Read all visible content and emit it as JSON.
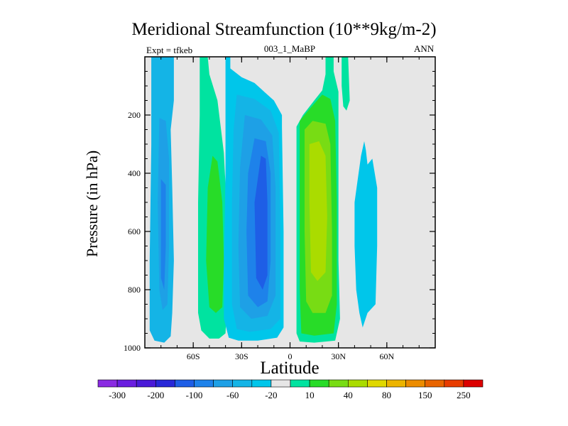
{
  "chart_data": {
    "type": "heatmap",
    "title": "Meridional Streamfunction (10**9kg/m-2)",
    "left_label": "Expt = tfkeb",
    "center_label": "003_1_MaBP",
    "right_label": "ANN",
    "xlabel": "Latitude",
    "ylabel": "Pressure (in hPa)",
    "xlim": [
      -90,
      90
    ],
    "ylim": [
      1000,
      0
    ],
    "x_ticks": [
      {
        "value": -60,
        "label": "60S"
      },
      {
        "value": -30,
        "label": "30S"
      },
      {
        "value": 0,
        "label": "0"
      },
      {
        "value": 30,
        "label": "30N"
      },
      {
        "value": 60,
        "label": "60N"
      }
    ],
    "y_ticks": [
      {
        "value": 200,
        "label": "200"
      },
      {
        "value": 400,
        "label": "400"
      },
      {
        "value": 600,
        "label": "600"
      },
      {
        "value": 800,
        "label": "800"
      },
      {
        "value": 1000,
        "label": "1000"
      }
    ],
    "cells": [
      {
        "name": "southern-polar-negative-cell",
        "lat": [
          -87,
          -72
        ],
        "p": [
          0,
          980
        ],
        "min": -60
      },
      {
        "name": "southern-ferrel-positive-cell",
        "lat": [
          -57,
          -39
        ],
        "p": [
          0,
          970
        ],
        "max": 40
      },
      {
        "name": "southern-hadley-negative-cell",
        "lat": [
          -41,
          -4
        ],
        "p": [
          0,
          980
        ],
        "min": -100
      },
      {
        "name": "northern-hadley-positive-cell",
        "lat": [
          4,
          31
        ],
        "p": [
          0,
          980
        ],
        "max": 80
      },
      {
        "name": "northern-upper-positive-cell",
        "lat": [
          32,
          37
        ],
        "p": [
          0,
          185
        ],
        "max": 10
      },
      {
        "name": "northern-ferrel-negative-cell",
        "lat": [
          40,
          54
        ],
        "p": [
          290,
          930
        ],
        "min": -20
      }
    ],
    "colorbar": {
      "colors": [
        "#8a2be2",
        "#6a1ee0",
        "#4a1ad8",
        "#2828d8",
        "#1e5ee6",
        "#1e82ea",
        "#1ea0e6",
        "#14b4e6",
        "#00c6ea",
        "#e6e6e6",
        "#00e3a0",
        "#28dc28",
        "#78dc14",
        "#aadc00",
        "#e0d800",
        "#ecb400",
        "#ec8c00",
        "#e86400",
        "#e83c00",
        "#dc0000"
      ],
      "labels": [
        "-300",
        "-200",
        "-100",
        "-60",
        "-20",
        "10",
        "40",
        "80",
        "150",
        "250"
      ]
    }
  }
}
